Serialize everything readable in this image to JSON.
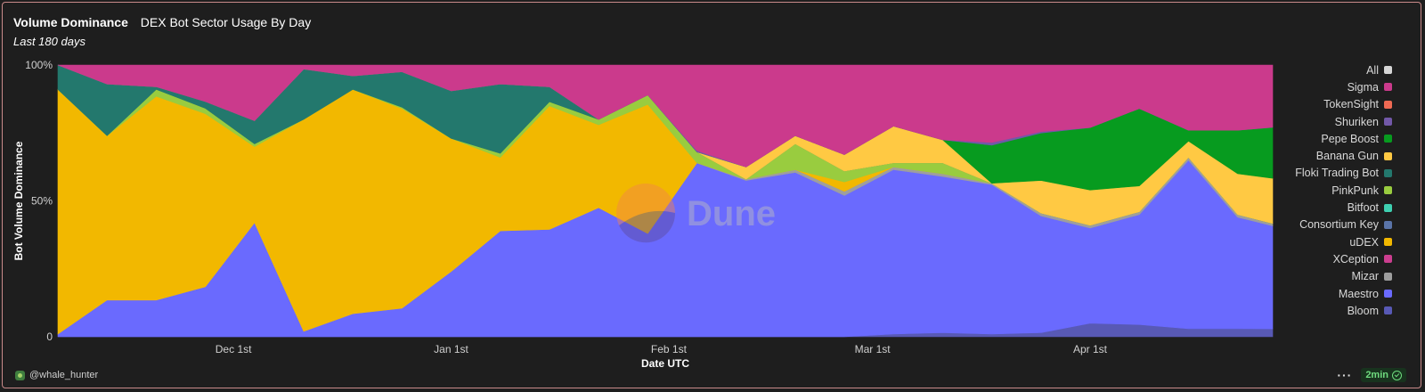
{
  "header": {
    "title": "Volume Dominance",
    "query_title": "DEX Bot Sector Usage By Day",
    "subtitle": "Last 180 days"
  },
  "chart_data": {
    "type": "area",
    "stacked": "percent",
    "xlabel": "Date UTC",
    "ylabel": "Bot Volume Dominance",
    "y_ticks": [
      "0",
      "50%",
      "100%"
    ],
    "ylim": [
      0,
      100
    ],
    "x_ticks": [
      {
        "label": "Dec 1st",
        "date": "2023-12-01"
      },
      {
        "label": "Jan 1st",
        "date": "2024-01-01"
      },
      {
        "label": "Feb 1st",
        "date": "2024-02-01"
      },
      {
        "label": "Mar 1st",
        "date": "2024-03-01"
      },
      {
        "label": "Apr 1st",
        "date": "2024-04-01"
      }
    ],
    "xlim": [
      "2023-11-06",
      "2024-04-27"
    ],
    "x": [
      "2023-11-06",
      "2023-11-13",
      "2023-11-20",
      "2023-11-27",
      "2023-12-04",
      "2023-12-11",
      "2023-12-18",
      "2023-12-25",
      "2024-01-01",
      "2024-01-08",
      "2024-01-15",
      "2024-01-22",
      "2024-01-29",
      "2024-02-05",
      "2024-02-12",
      "2024-02-19",
      "2024-02-26",
      "2024-03-04",
      "2024-03-11",
      "2024-03-18",
      "2024-03-25",
      "2024-04-01",
      "2024-04-08",
      "2024-04-15",
      "2024-04-22",
      "2024-04-27"
    ],
    "series": [
      {
        "name": "Bloom",
        "color": "#5859b5",
        "values": [
          0,
          0,
          0,
          0,
          0,
          0,
          0,
          0,
          0,
          0,
          0,
          0,
          0,
          0,
          0,
          0,
          0,
          1,
          1.5,
          1,
          1.5,
          5,
          4.5,
          3,
          3,
          3.5
        ]
      },
      {
        "name": "Maestro",
        "color": "#6a6afe",
        "values": [
          1,
          13.5,
          13.5,
          18.5,
          42,
          2,
          8.5,
          10.5,
          24,
          39,
          39.5,
          47.5,
          38,
          64,
          57.5,
          60.5,
          52,
          60.5,
          57.5,
          55,
          43,
          35,
          40.5,
          62,
          41,
          45.5
        ]
      },
      {
        "name": "Mizar",
        "color": "#9e9e9e",
        "values": [
          0,
          0,
          0,
          0,
          0,
          0,
          0,
          0,
          0,
          0,
          0,
          0,
          0,
          0,
          0.5,
          1,
          1.5,
          1,
          1,
          0.5,
          1,
          1,
          1,
          1,
          1,
          1
        ]
      },
      {
        "name": "XCeption",
        "color": "#cc3e8f",
        "values": [
          0,
          0,
          0,
          0,
          0,
          0,
          0,
          0,
          0,
          0,
          0,
          0,
          0,
          0,
          0,
          0,
          0,
          0,
          0,
          0,
          0,
          0,
          0,
          0,
          0,
          0
        ]
      },
      {
        "name": "uDEX",
        "color": "#f2b800",
        "values": [
          90,
          60.5,
          75,
          64,
          28,
          78,
          82.5,
          73.5,
          49,
          27,
          45.5,
          30.5,
          47.5,
          0,
          0,
          0,
          3.5,
          0,
          0,
          0,
          0,
          0,
          0,
          0,
          0,
          0
        ]
      },
      {
        "name": "Consortium Key",
        "color": "#5a74a8",
        "values": [
          0,
          0,
          0,
          0,
          0,
          0,
          0,
          0,
          0,
          0,
          0,
          0,
          0,
          0,
          0,
          0,
          0,
          0,
          0,
          0,
          0,
          0,
          0,
          0,
          0,
          0
        ]
      },
      {
        "name": "Bitfoot",
        "color": "#3ecfb0",
        "values": [
          0,
          0,
          0,
          0,
          0,
          0,
          0,
          0,
          0,
          0,
          0,
          0,
          0,
          0,
          0,
          0,
          0,
          0,
          0,
          0,
          0,
          0,
          0,
          0,
          0,
          0
        ]
      },
      {
        "name": "PinkPunk",
        "color": "#99cc3f",
        "values": [
          0,
          0,
          2.5,
          2,
          1,
          0,
          0,
          0.5,
          0,
          1.5,
          1.5,
          2,
          3.5,
          4,
          0,
          9.5,
          4,
          1.5,
          4,
          0,
          0,
          0,
          0,
          0,
          0,
          0
        ]
      },
      {
        "name": "Floki Trading Bot",
        "color": "#23786d",
        "values": [
          9,
          19,
          1,
          2.5,
          8.5,
          18.5,
          5,
          13,
          17.5,
          25.5,
          5.5,
          0,
          0,
          0,
          0,
          0,
          0,
          0,
          0,
          0,
          0,
          0,
          0,
          0,
          0,
          0
        ]
      },
      {
        "name": "Banana Gun",
        "color": "#ffc943",
        "values": [
          0,
          0,
          0,
          0,
          0,
          0,
          0,
          0,
          0,
          0,
          0,
          0,
          0,
          0,
          4.5,
          3,
          6,
          13.5,
          8.5,
          0,
          12,
          13,
          9.5,
          6,
          15,
          20
        ]
      },
      {
        "name": "Pepe Boost",
        "color": "#079b1f",
        "values": [
          0,
          0,
          0,
          0,
          0,
          0,
          0,
          0,
          0,
          0,
          0,
          0,
          0,
          0,
          0,
          0,
          0,
          0,
          0,
          14,
          17.5,
          23,
          28.5,
          4,
          16,
          22.5
        ]
      },
      {
        "name": "Shuriken",
        "color": "#7258a8",
        "values": [
          0,
          0,
          0,
          0,
          0,
          0,
          0,
          0,
          0,
          0,
          0,
          0,
          0,
          0.5,
          0,
          0,
          0,
          0,
          0,
          1,
          0.5,
          0,
          0,
          0,
          0,
          0
        ]
      },
      {
        "name": "TokenSight",
        "color": "#f06a53",
        "values": [
          0,
          0,
          0,
          0,
          0,
          0,
          0,
          0,
          0,
          0,
          0,
          0,
          0,
          0,
          0,
          0,
          0,
          0,
          0,
          0,
          0,
          0,
          0,
          0,
          0,
          0
        ]
      },
      {
        "name": "Sigma",
        "color": "#cb3a8c",
        "values": [
          0,
          7,
          8,
          13.5,
          20.5,
          1.5,
          4,
          2.5,
          9.5,
          7,
          8,
          20,
          11,
          31.5,
          37.5,
          26,
          33,
          22.5,
          27.5,
          28.5,
          24.5,
          23,
          16,
          24,
          24,
          27.5
        ]
      }
    ],
    "legend": {
      "placement": "right",
      "items": [
        {
          "name": "All",
          "color": "#d6d6d6"
        },
        {
          "name": "Sigma",
          "color": "#cb3a8c"
        },
        {
          "name": "TokenSight",
          "color": "#f06a53"
        },
        {
          "name": "Shuriken",
          "color": "#7258a8"
        },
        {
          "name": "Pepe Boost",
          "color": "#079b1f"
        },
        {
          "name": "Banana Gun",
          "color": "#ffc943"
        },
        {
          "name": "Floki Trading Bot",
          "color": "#23786d"
        },
        {
          "name": "PinkPunk",
          "color": "#99cc3f"
        },
        {
          "name": "Bitfoot",
          "color": "#3ecfb0"
        },
        {
          "name": "Consortium Key",
          "color": "#5a74a8"
        },
        {
          "name": "uDEX",
          "color": "#f2b800"
        },
        {
          "name": "XCeption",
          "color": "#cc3e8f"
        },
        {
          "name": "Mizar",
          "color": "#9e9e9e"
        },
        {
          "name": "Maestro",
          "color": "#6a6afe"
        },
        {
          "name": "Bloom",
          "color": "#5859b5"
        }
      ]
    },
    "watermark": "Dune"
  },
  "footer": {
    "username": "@whale_hunter",
    "refresh_time": "2min",
    "more_label": "···"
  }
}
